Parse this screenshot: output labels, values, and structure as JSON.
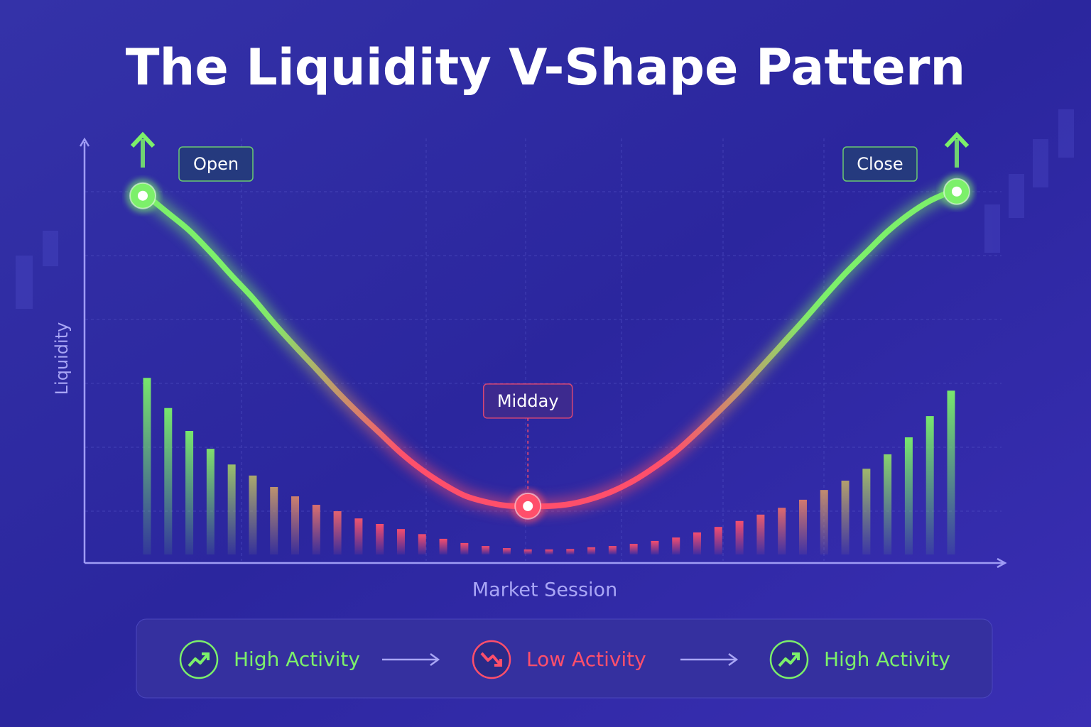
{
  "chart_data": {
    "type": "combo",
    "title": "The Liquidity V-Shape Pattern",
    "x_label": "Market Session",
    "y_label": "Liquidity",
    "ylim": [
      0,
      100
    ],
    "high_color": "#7CF06A",
    "low_color": "#FF4F6B",
    "series": [
      {
        "type": "bar",
        "values": [
          43.6,
          36.5,
          31.1,
          26.9,
          23.2,
          20.6,
          17.9,
          15.7,
          13.7,
          12.2,
          10.5,
          9.2,
          8.0,
          6.8,
          5.7,
          4.7,
          4.0,
          3.5,
          3.2,
          3.2,
          3.3,
          3.7,
          4.0,
          4.5,
          5.2,
          6.0,
          7.2,
          8.5,
          9.9,
          11.4,
          13.0,
          14.9,
          17.2,
          19.4,
          22.2,
          25.6,
          29.6,
          34.6,
          40.6
        ]
      },
      {
        "type": "line",
        "values": [
          86.5,
          82.4,
          78.3,
          73.2,
          67.7,
          62.4,
          56.5,
          51.0,
          45.7,
          40.3,
          35.3,
          30.6,
          25.9,
          21.9,
          18.6,
          15.9,
          14.4,
          13.5,
          13.4,
          13.4,
          13.9,
          15.1,
          16.9,
          19.4,
          22.6,
          26.3,
          30.8,
          35.6,
          40.6,
          46.0,
          51.5,
          57.0,
          62.7,
          68.2,
          73.2,
          78.1,
          82.1,
          85.3,
          87.5
        ]
      }
    ],
    "annotations": [
      "Open",
      "Midday",
      "Close"
    ],
    "legend_flow": [
      {
        "text": "High Activity",
        "trend": "up",
        "color": "#7CF06A"
      },
      {
        "text": "Low Activity",
        "trend": "down",
        "color": "#FF4F6B"
      },
      {
        "text": "High Activity",
        "trend": "up",
        "color": "#7CF06A"
      }
    ]
  }
}
